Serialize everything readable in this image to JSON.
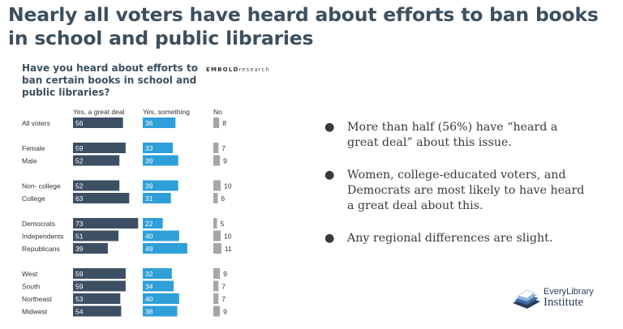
{
  "slide_title": "Nearly all voters have heard about efforts to ban books in school and public libraries",
  "brand": {
    "bold": "EMBOLD",
    "light": "research"
  },
  "chart_data": {
    "type": "bar",
    "title": "Have you heard about efforts to ban certain books in school and public libraries?",
    "series": [
      {
        "name": "Yes, a great deal",
        "color": "#3d4f63",
        "values": [
          56,
          59,
          52,
          52,
          63,
          73,
          51,
          39,
          59,
          59,
          53,
          54
        ]
      },
      {
        "name": "Yes, something",
        "color": "#2e9fd8",
        "values": [
          36,
          33,
          39,
          39,
          31,
          22,
          40,
          49,
          32,
          34,
          40,
          38
        ]
      },
      {
        "name": "No",
        "color": "#a6a6a6",
        "values": [
          8,
          7,
          9,
          10,
          6,
          5,
          10,
          11,
          9,
          7,
          7,
          9
        ]
      }
    ],
    "categories": [
      "All voters",
      "Female",
      "Male",
      "Non- college",
      "College",
      "Democrats",
      "Independents",
      "Republicans",
      "West",
      "South",
      "Northeast",
      "Midwest"
    ],
    "groups": [
      [
        0
      ],
      [
        1,
        2
      ],
      [
        3,
        4
      ],
      [
        5,
        6,
        7
      ],
      [
        8,
        9,
        10,
        11
      ]
    ]
  },
  "bullets": [
    "More than half (56%) have “heard a great deal” about this issue.",
    "Women, college-educated voters, and Democrats are most likely to have heard a great deal about this.",
    "Any regional differences are slight."
  ],
  "bullet_symbol": "●",
  "logo": {
    "line1": "EveryLibrary",
    "line2": "Institute"
  }
}
